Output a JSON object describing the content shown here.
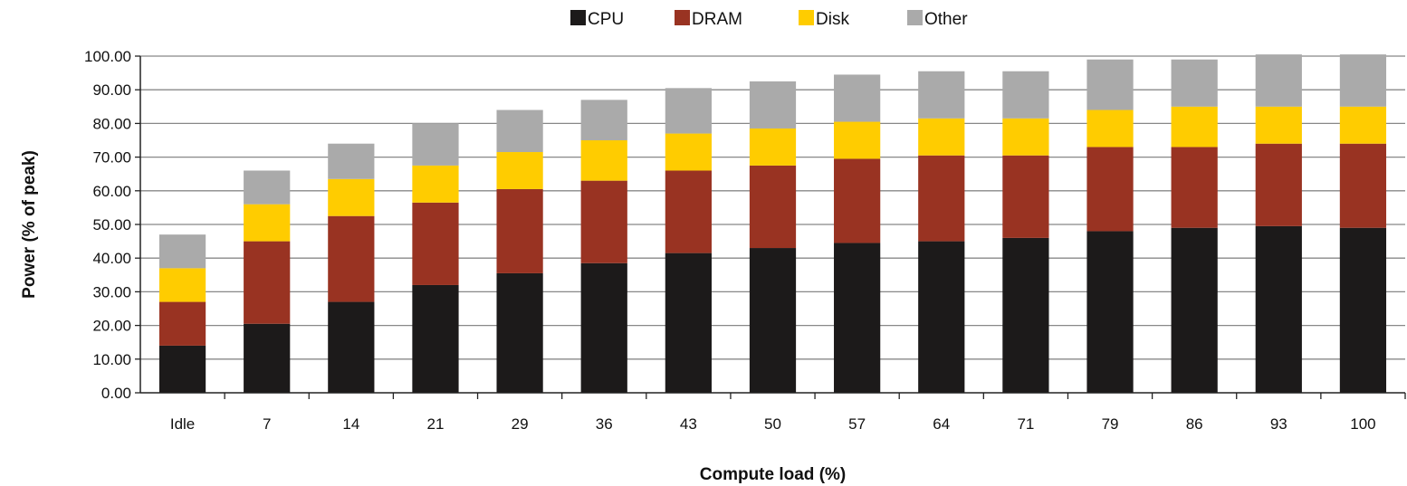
{
  "chart_data": {
    "type": "bar",
    "stacked": true,
    "title": "",
    "xlabel": "Compute load (%)",
    "ylabel": "Power (% of peak)",
    "ylim": [
      0,
      100
    ],
    "yticks": [
      "0.00",
      "10.00",
      "20.00",
      "30.00",
      "40.00",
      "50.00",
      "60.00",
      "70.00",
      "80.00",
      "90.00",
      "100.00"
    ],
    "ytick_values": [
      0,
      10,
      20,
      30,
      40,
      50,
      60,
      70,
      80,
      90,
      100
    ],
    "grid": true,
    "legend_position": "top-center",
    "categories": [
      "Idle",
      "7",
      "14",
      "21",
      "29",
      "36",
      "43",
      "50",
      "57",
      "64",
      "71",
      "79",
      "86",
      "93",
      "100"
    ],
    "series": [
      {
        "name": "CPU",
        "color": "#1c1a1a",
        "values": [
          14,
          20.5,
          27,
          32,
          35.5,
          38.5,
          41.5,
          43,
          44.5,
          45,
          46,
          48,
          49,
          49.5,
          49
        ]
      },
      {
        "name": "DRAM",
        "color": "#993322",
        "values": [
          13,
          24.5,
          25.5,
          24.5,
          25,
          24.5,
          24.5,
          24.5,
          25,
          25.5,
          24.5,
          25,
          24,
          24.5,
          25
        ]
      },
      {
        "name": "Disk",
        "color": "#ffcc00",
        "values": [
          10,
          11,
          11,
          11,
          11,
          12,
          11,
          11,
          11,
          11,
          11,
          11,
          12,
          11,
          11
        ]
      },
      {
        "name": "Other",
        "color": "#aaaaaa",
        "values": [
          10,
          10,
          10.5,
          12.5,
          12.5,
          12,
          13.5,
          14,
          14,
          14,
          14,
          15,
          14,
          15.5,
          15.5
        ]
      }
    ]
  }
}
